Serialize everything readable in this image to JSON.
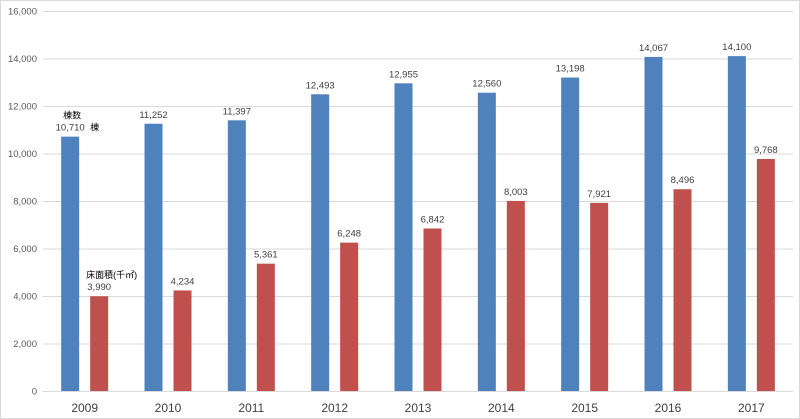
{
  "chart_data": {
    "type": "bar",
    "categories": [
      "2009",
      "2010",
      "2011",
      "2012",
      "2013",
      "2014",
      "2015",
      "2016",
      "2017"
    ],
    "series": [
      {
        "name": "棟数",
        "unit": "棟",
        "color": "#4f81bd",
        "values": [
          10710,
          11252,
          11397,
          12493,
          12955,
          12560,
          13198,
          14067,
          14100
        ],
        "data_labels": [
          "10,710",
          "11,252",
          "11,397",
          "12,493",
          "12,955",
          "12,560",
          "13,198",
          "14,067",
          "14,100"
        ]
      },
      {
        "name": "床面積(千㎡)",
        "color": "#c0504d",
        "values": [
          3990,
          4234,
          5361,
          6248,
          6842,
          8003,
          7921,
          8496,
          9768
        ],
        "data_labels": [
          "3,990",
          "4,234",
          "5,361",
          "6,248",
          "6,842",
          "8,003",
          "7,921",
          "8,496",
          "9,768"
        ]
      }
    ],
    "ylim": [
      0,
      16000
    ],
    "y_ticks": [
      0,
      2000,
      4000,
      6000,
      8000,
      10000,
      12000,
      14000,
      16000
    ],
    "y_tick_labels": [
      "0",
      "2,000",
      "4,000",
      "6,000",
      "8,000",
      "10,000",
      "12,000",
      "14,000",
      "16,000"
    ],
    "grid": true,
    "legend": "none"
  }
}
